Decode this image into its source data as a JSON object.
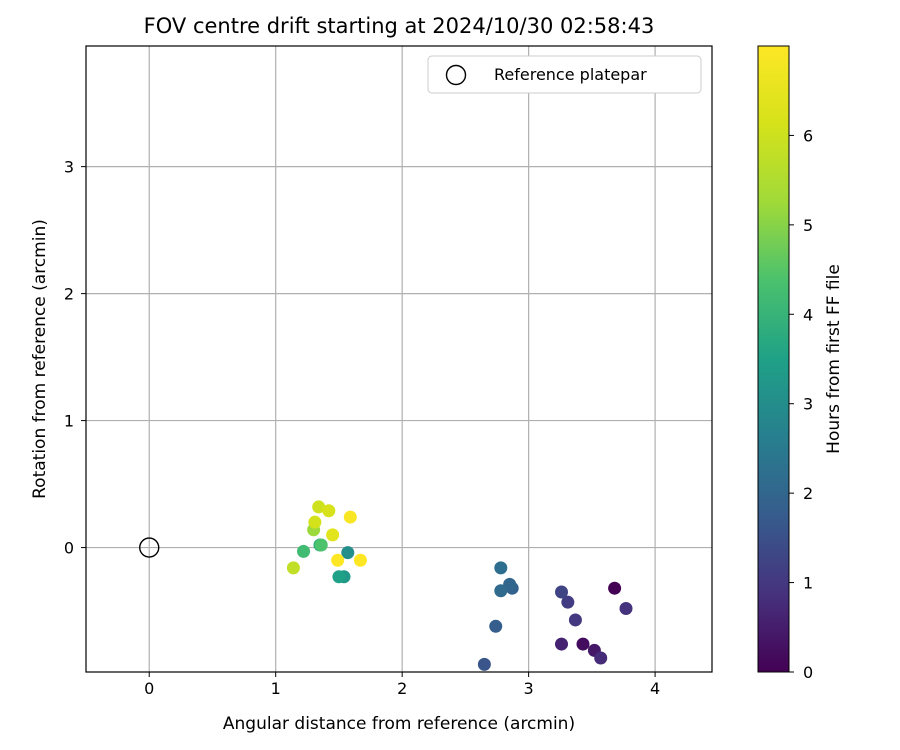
{
  "chart_data": {
    "type": "scatter",
    "title": "FOV centre drift starting at 2024/10/30 02:58:43",
    "xlabel": "Angular distance from reference (arcmin)",
    "ylabel": "Rotation from reference (arcmin)",
    "xlim": [
      -0.5,
      4.45
    ],
    "ylim": [
      -0.98,
      3.95
    ],
    "xticks": [
      0,
      1,
      2,
      3,
      4
    ],
    "xtick_labels": [
      "0",
      "1",
      "2",
      "3",
      "4"
    ],
    "yticks": [
      0,
      1,
      2,
      3
    ],
    "ytick_labels": [
      "0",
      "1",
      "2",
      "3"
    ],
    "grid": true,
    "legend": {
      "placement": "top-right",
      "entries": [
        {
          "label": "Reference platepar",
          "marker": "open-circle"
        }
      ]
    },
    "reference_point": {
      "x": 0,
      "y": 0
    },
    "colorbar": {
      "label": "Hours from first FF file",
      "colormap": "viridis",
      "range": [
        0,
        7.0
      ],
      "ticks": [
        0,
        1,
        2,
        3,
        4,
        5,
        6
      ],
      "tick_labels": [
        "0",
        "1",
        "2",
        "3",
        "4",
        "5",
        "6"
      ]
    },
    "points": [
      {
        "x": 3.68,
        "y": -0.32,
        "hours": 0.0
      },
      {
        "x": 3.43,
        "y": -0.76,
        "hours": 0.2
      },
      {
        "x": 3.52,
        "y": -0.81,
        "hours": 0.4
      },
      {
        "x": 3.26,
        "y": -0.76,
        "hours": 0.6
      },
      {
        "x": 3.57,
        "y": -0.87,
        "hours": 0.75
      },
      {
        "x": 3.77,
        "y": -0.48,
        "hours": 0.9
      },
      {
        "x": 3.37,
        "y": -0.57,
        "hours": 1.0
      },
      {
        "x": 3.31,
        "y": -0.43,
        "hours": 1.1
      },
      {
        "x": 3.26,
        "y": -0.35,
        "hours": 1.25
      },
      {
        "x": 2.65,
        "y": -0.92,
        "hours": 1.6
      },
      {
        "x": 2.74,
        "y": -0.62,
        "hours": 1.8
      },
      {
        "x": 2.87,
        "y": -0.32,
        "hours": 1.9
      },
      {
        "x": 2.85,
        "y": -0.29,
        "hours": 2.0
      },
      {
        "x": 2.78,
        "y": -0.34,
        "hours": 2.1
      },
      {
        "x": 2.78,
        "y": -0.16,
        "hours": 2.2
      },
      {
        "x": 1.57,
        "y": -0.04,
        "hours": 3.0
      },
      {
        "x": 1.54,
        "y": -0.23,
        "hours": 3.3
      },
      {
        "x": 1.5,
        "y": -0.23,
        "hours": 3.5
      },
      {
        "x": 1.35,
        "y": 0.02,
        "hours": 3.8
      },
      {
        "x": 1.22,
        "y": -0.03,
        "hours": 4.2
      },
      {
        "x": 1.36,
        "y": 0.02,
        "hours": 4.4
      },
      {
        "x": 1.3,
        "y": 0.14,
        "hours": 5.2
      },
      {
        "x": 1.14,
        "y": -0.16,
        "hours": 5.8
      },
      {
        "x": 1.34,
        "y": 0.32,
        "hours": 6.0
      },
      {
        "x": 1.31,
        "y": 0.2,
        "hours": 6.1
      },
      {
        "x": 1.42,
        "y": 0.29,
        "hours": 6.2
      },
      {
        "x": 1.45,
        "y": 0.1,
        "hours": 6.4
      },
      {
        "x": 1.59,
        "y": 0.24,
        "hours": 6.9
      },
      {
        "x": 1.67,
        "y": -0.1,
        "hours": 7.0
      },
      {
        "x": 1.49,
        "y": -0.1,
        "hours": 7.0
      }
    ]
  }
}
